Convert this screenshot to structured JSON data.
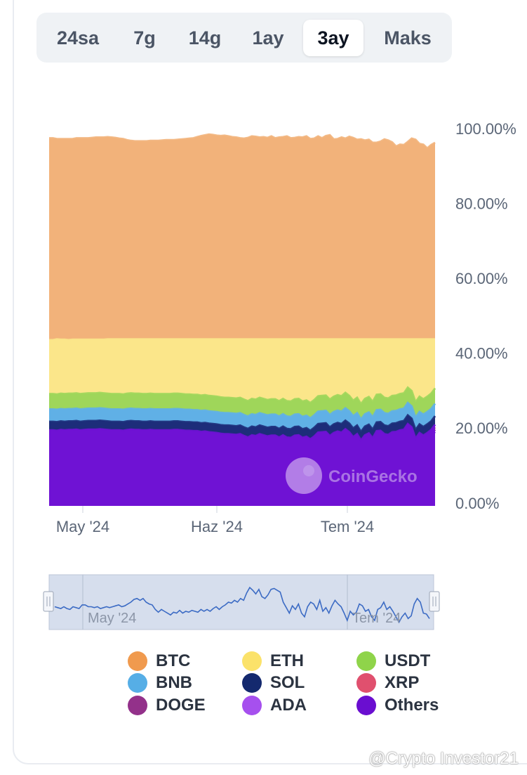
{
  "tabs": [
    {
      "label": "24sa",
      "active": false
    },
    {
      "label": "7g",
      "active": false
    },
    {
      "label": "14g",
      "active": false
    },
    {
      "label": "1ay",
      "active": false
    },
    {
      "label": "3ay",
      "active": true
    },
    {
      "label": "Maks",
      "active": false
    }
  ],
  "chart_data": {
    "type": "area",
    "stacked": true,
    "percent": true,
    "x_ticks": [
      "May '24",
      "Haz '24",
      "Tem '24"
    ],
    "y_ticks": [
      "100.00%",
      "80.00%",
      "60.00%",
      "40.00%",
      "20.00%",
      "0.00%"
    ],
    "ylim": [
      0,
      100
    ],
    "x": [
      0,
      1,
      2,
      3,
      4,
      5,
      6,
      7,
      8,
      9,
      10,
      11,
      12,
      13,
      14,
      15,
      16,
      17,
      18,
      19,
      20,
      21,
      22,
      23,
      24,
      25,
      26,
      27,
      28,
      29,
      30,
      31,
      32,
      33,
      34,
      35,
      36,
      37,
      38,
      39,
      40,
      41,
      42,
      43,
      44,
      45,
      46,
      47,
      48,
      49,
      50,
      51,
      52,
      53,
      54,
      55,
      56,
      57,
      58,
      59,
      60,
      61,
      62,
      63,
      64,
      65,
      66,
      67,
      68,
      69,
      70,
      71,
      72,
      73,
      74,
      75,
      76,
      77,
      78,
      79,
      80,
      81,
      82,
      83,
      84,
      85,
      86,
      87,
      88,
      89,
      90,
      91,
      92,
      93,
      94,
      95,
      96,
      97,
      98,
      99
    ],
    "series": [
      {
        "name": "Others",
        "color": "#6f12d4",
        "values": [
          20.2,
          20.2,
          20.1,
          20.3,
          20.2,
          20.3,
          20.3,
          20.4,
          20.2,
          20.3,
          20.4,
          20.4,
          20.4,
          20.5,
          20.4,
          20.3,
          20.2,
          20.2,
          20.2,
          20.1,
          20.3,
          20.4,
          20.3,
          20.3,
          20.2,
          20.2,
          20.3,
          20.2,
          20.2,
          20.2,
          20.2,
          20.2,
          20.3,
          20.3,
          20.2,
          20.1,
          20.1,
          20.0,
          20.0,
          19.8,
          19.9,
          19.7,
          19.6,
          19.5,
          19.3,
          19.2,
          19.2,
          19.1,
          19.0,
          19.2,
          18.7,
          18.3,
          18.9,
          18.7,
          19.2,
          18.9,
          18.6,
          18.8,
          18.8,
          18.3,
          18.9,
          18.3,
          18.2,
          18.8,
          18.9,
          18.2,
          18.5,
          17.8,
          18.6,
          19.6,
          19.7,
          19.8,
          18.7,
          19.5,
          19.9,
          19.6,
          20.5,
          19.7,
          18.4,
          19.2,
          17.5,
          18.9,
          19.4,
          18.1,
          20.0,
          20.1,
          19.2,
          19.0,
          19.7,
          19.8,
          20.2,
          20.4,
          21.9,
          21.0,
          18.0,
          19.5,
          18.8,
          19.5,
          20.3,
          21.7
        ]
      },
      {
        "name": "ADA",
        "color": "#a04cf0",
        "values": [
          -1.9,
          -1.9,
          -1.9,
          -1.9,
          -1.9,
          -1.9,
          -1.9,
          -1.9,
          -1.9,
          -1.9,
          -1.9,
          -1.9,
          -1.9,
          -1.9,
          -1.9,
          -1.9,
          -1.9,
          -1.9,
          -1.9,
          -1.9,
          -1.9,
          -1.9,
          -1.9,
          -1.9,
          -1.9,
          -1.9,
          -1.9,
          -1.9,
          -1.9,
          -1.9,
          -1.9,
          -1.9,
          -1.9,
          -1.9,
          -1.9,
          -1.9,
          -1.9,
          -1.9,
          -1.9,
          -1.9,
          -1.9,
          -1.9,
          -1.9,
          -1.9,
          -1.9,
          -1.9,
          -1.9,
          -1.9,
          -1.9,
          -1.9,
          -1.9,
          -1.9,
          -1.9,
          -1.9,
          -1.9,
          -1.9,
          -1.9,
          -1.9,
          -1.9,
          -1.9,
          -1.9,
          -1.9,
          -1.9,
          -1.9,
          -1.9,
          -1.9,
          -1.9,
          -1.9,
          -1.9,
          -1.9,
          -1.9,
          -1.9,
          -1.9,
          -1.9,
          -1.9,
          -1.9,
          -1.9,
          -1.9,
          -1.9,
          -1.9,
          -1.9,
          -1.9,
          -1.9,
          -1.9,
          -1.9,
          -1.9,
          -1.9,
          -1.9,
          -1.9,
          -1.9,
          -1.9,
          -1.9,
          -1.9,
          -1.9,
          -1.9,
          -1.9,
          -1.9,
          -1.9,
          -1.9,
          -1.9
        ]
      },
      {
        "name": "DOGE",
        "color": "#963696",
        "values": [
          0.6,
          0.6,
          0.6,
          0.6,
          0.6,
          0.6,
          0.6,
          0.6,
          0.6,
          0.6,
          0.6,
          0.6,
          0.6,
          0.6,
          0.6,
          0.6,
          0.6,
          0.6,
          0.6,
          0.6,
          0.6,
          0.6,
          0.6,
          0.6,
          0.6,
          0.6,
          0.6,
          0.6,
          0.6,
          0.6,
          0.6,
          0.6,
          0.6,
          0.6,
          0.6,
          0.6,
          0.6,
          0.6,
          0.6,
          0.6,
          0.6,
          0.6,
          0.6,
          0.6,
          0.6,
          0.6,
          0.6,
          0.6,
          0.6,
          0.6,
          0.6,
          0.6,
          0.6,
          0.6,
          0.6,
          0.6,
          0.6,
          0.6,
          0.6,
          0.6,
          0.6,
          0.6,
          0.6,
          0.6,
          0.6,
          0.6,
          0.6,
          0.6,
          0.6,
          0.6,
          0.6,
          0.6,
          0.6,
          0.6,
          0.6,
          0.6,
          0.6,
          0.6,
          0.6,
          0.6,
          0.6,
          0.6,
          0.6,
          0.6,
          0.6,
          0.6,
          0.6,
          0.6,
          0.6,
          0.6,
          0.6,
          0.6,
          0.6,
          0.6,
          0.6,
          0.6,
          0.6,
          0.6,
          0.6,
          0.6
        ]
      },
      {
        "name": "XRP",
        "color": "#e2557a",
        "values": [
          0.6,
          0.6,
          0.6,
          0.6,
          0.6,
          0.6,
          0.6,
          0.6,
          0.6,
          0.6,
          0.6,
          0.6,
          0.6,
          0.6,
          0.6,
          0.6,
          0.6,
          0.6,
          0.6,
          0.6,
          0.6,
          0.6,
          0.6,
          0.6,
          0.6,
          0.6,
          0.6,
          0.6,
          0.6,
          0.6,
          0.6,
          0.6,
          0.6,
          0.6,
          0.6,
          0.6,
          0.6,
          0.6,
          0.6,
          0.6,
          0.6,
          0.6,
          0.6,
          0.6,
          0.6,
          0.6,
          0.6,
          0.6,
          0.6,
          0.6,
          0.6,
          0.6,
          0.6,
          0.6,
          0.6,
          0.6,
          0.6,
          0.6,
          0.6,
          0.6,
          0.6,
          0.6,
          0.6,
          0.6,
          0.6,
          0.6,
          0.6,
          0.6,
          0.6,
          0.6,
          0.6,
          0.6,
          0.6,
          0.6,
          0.6,
          0.6,
          0.6,
          0.6,
          0.6,
          0.6,
          0.6,
          0.6,
          0.6,
          0.6,
          0.6,
          0.6,
          0.6,
          0.6,
          0.6,
          0.6,
          0.6,
          0.6,
          0.6,
          0.6,
          0.6,
          0.6,
          0.6,
          0.6,
          0.6,
          0.6
        ]
      },
      {
        "name": "SOL",
        "color": "#1d2d7a",
        "values": [
          3.0,
          3.0,
          3.0,
          3.0,
          3.0,
          3.0,
          3.0,
          3.0,
          3.0,
          3.0,
          3.0,
          3.0,
          3.0,
          3.0,
          3.0,
          3.0,
          3.0,
          3.0,
          3.0,
          3.0,
          3.0,
          3.0,
          3.0,
          3.0,
          3.0,
          3.0,
          3.0,
          3.0,
          3.0,
          3.0,
          3.0,
          3.0,
          3.0,
          3.0,
          3.0,
          3.0,
          3.0,
          3.0,
          3.0,
          3.0,
          3.0,
          3.0,
          3.0,
          3.0,
          3.0,
          3.0,
          3.0,
          3.0,
          3.0,
          3.0,
          3.0,
          3.0,
          3.0,
          3.0,
          3.0,
          3.0,
          3.0,
          3.0,
          3.0,
          3.0,
          3.0,
          3.0,
          3.0,
          3.0,
          3.0,
          3.0,
          3.0,
          3.0,
          3.0,
          3.0,
          3.0,
          3.0,
          3.0,
          3.0,
          3.0,
          3.0,
          3.0,
          3.0,
          3.0,
          3.0,
          3.0,
          3.0,
          3.0,
          3.0,
          3.0,
          3.0,
          3.0,
          3.0,
          3.0,
          3.0,
          3.0,
          3.0,
          3.0,
          3.0,
          3.0,
          3.0,
          3.0,
          3.0,
          3.0,
          3.0
        ]
      },
      {
        "name": "BNB",
        "color": "#60b0e6",
        "values": [
          3.3,
          3.3,
          3.3,
          3.3,
          3.3,
          3.3,
          3.3,
          3.3,
          3.3,
          3.3,
          3.3,
          3.3,
          3.3,
          3.3,
          3.3,
          3.3,
          3.3,
          3.3,
          3.3,
          3.3,
          3.3,
          3.3,
          3.3,
          3.3,
          3.3,
          3.3,
          3.3,
          3.3,
          3.3,
          3.3,
          3.3,
          3.3,
          3.3,
          3.3,
          3.3,
          3.3,
          3.3,
          3.3,
          3.3,
          3.3,
          3.3,
          3.3,
          3.3,
          3.3,
          3.3,
          3.3,
          3.3,
          3.3,
          3.3,
          3.3,
          3.3,
          3.3,
          3.3,
          3.3,
          3.3,
          3.3,
          3.3,
          3.3,
          3.3,
          3.3,
          3.3,
          3.3,
          3.3,
          3.3,
          3.3,
          3.3,
          3.3,
          3.3,
          3.3,
          3.3,
          3.3,
          3.3,
          3.3,
          3.3,
          3.3,
          3.3,
          3.3,
          3.3,
          3.3,
          3.3,
          3.3,
          3.3,
          3.3,
          3.3,
          3.3,
          3.3,
          3.3,
          3.3,
          3.3,
          3.3,
          3.3,
          3.3,
          3.3,
          3.3,
          3.3,
          3.3,
          3.3,
          3.3,
          3.3,
          3.3
        ]
      },
      {
        "name": "USDT",
        "color": "#9fd65a",
        "values": [
          4.1,
          4.1,
          4.1,
          4.1,
          4.1,
          4.1,
          4.1,
          4.1,
          4.1,
          4.1,
          4.1,
          4.1,
          4.1,
          4.1,
          4.1,
          4.1,
          4.1,
          4.1,
          4.1,
          4.1,
          4.1,
          4.1,
          4.1,
          4.1,
          4.1,
          4.1,
          4.1,
          4.1,
          4.1,
          4.1,
          4.1,
          4.1,
          4.1,
          4.1,
          4.1,
          4.1,
          4.1,
          4.1,
          4.1,
          4.1,
          4.1,
          4.1,
          4.1,
          4.1,
          4.1,
          4.1,
          4.1,
          4.1,
          4.1,
          4.1,
          4.1,
          4.1,
          4.1,
          4.1,
          4.1,
          4.1,
          4.1,
          4.1,
          4.1,
          4.1,
          4.1,
          4.1,
          4.1,
          4.1,
          4.1,
          4.1,
          4.1,
          4.1,
          4.1,
          4.1,
          4.1,
          4.1,
          4.1,
          4.1,
          4.1,
          4.1,
          4.1,
          4.1,
          4.1,
          4.1,
          4.1,
          4.1,
          4.1,
          4.1,
          4.1,
          4.1,
          4.1,
          4.1,
          4.1,
          4.1,
          4.1,
          4.1,
          4.1,
          4.1,
          4.1,
          4.1,
          4.1,
          4.1,
          4.1,
          4.1
        ]
      },
      {
        "name": "ETH",
        "color": "#fbe68a",
        "values": [
          14.4,
          14.4,
          14.7,
          14.4,
          14.5,
          14.3,
          14.4,
          14.3,
          14.5,
          14.4,
          14.3,
          14.3,
          14.3,
          14.2,
          14.3,
          14.5,
          14.6,
          14.6,
          14.6,
          14.7,
          14.5,
          14.4,
          14.5,
          14.5,
          14.6,
          14.6,
          14.5,
          14.6,
          14.6,
          14.6,
          14.6,
          14.6,
          14.5,
          14.5,
          14.6,
          14.7,
          14.7,
          14.8,
          14.8,
          15.0,
          14.9,
          15.1,
          15.2,
          15.3,
          15.5,
          15.6,
          15.6,
          15.7,
          15.8,
          15.6,
          16.1,
          16.5,
          15.9,
          16.1,
          15.6,
          15.9,
          16.2,
          16.0,
          16.0,
          16.5,
          15.9,
          16.5,
          16.6,
          16.0,
          15.9,
          16.6,
          16.3,
          17.0,
          16.2,
          15.2,
          15.1,
          15.0,
          16.1,
          15.3,
          14.9,
          15.2,
          14.3,
          15.1,
          16.4,
          15.6,
          17.3,
          15.9,
          15.4,
          16.7,
          14.8,
          14.7,
          15.6,
          15.8,
          15.1,
          15.0,
          14.6,
          14.4,
          12.9,
          13.8,
          16.8,
          15.3,
          16.0,
          15.3,
          14.5,
          13.1
        ]
      },
      {
        "name": "BTC",
        "color": "#f2b27a",
        "values": [
          53.9,
          53.9,
          53.5,
          53.6,
          53.6,
          53.7,
          53.6,
          53.8,
          53.8,
          53.8,
          53.8,
          53.9,
          54.0,
          54.0,
          54.0,
          54.0,
          53.9,
          53.8,
          53.6,
          53.5,
          53.2,
          53.0,
          52.9,
          52.9,
          52.9,
          52.9,
          53.0,
          53.0,
          53.0,
          53.1,
          53.2,
          53.2,
          53.2,
          53.3,
          53.4,
          53.5,
          53.6,
          53.7,
          54.0,
          54.3,
          54.5,
          54.7,
          54.6,
          54.4,
          54.3,
          54.4,
          54.2,
          54.0,
          53.9,
          53.7,
          53.6,
          53.8,
          54.2,
          54.1,
          53.9,
          54.0,
          53.8,
          54.2,
          53.7,
          53.9,
          54.0,
          54.2,
          53.7,
          53.8,
          54.0,
          53.9,
          54.2,
          53.5,
          53.6,
          54.2,
          53.7,
          54.3,
          54.5,
          53.4,
          53.5,
          53.9,
          53.6,
          54.1,
          53.8,
          53.3,
          53.4,
          53.1,
          53.3,
          52.5,
          52.5,
          52.8,
          53.4,
          53.1,
          52.6,
          51.5,
          52.0,
          51.9,
          52.7,
          53.6,
          53.3,
          52.2,
          52.0,
          51.0,
          51.9,
          52.5
        ]
      }
    ],
    "navigator": {
      "x_ticks": [
        "May '24",
        "Tem '24"
      ],
      "values": [
        55,
        54,
        53,
        55,
        53,
        52,
        55,
        54,
        53,
        57,
        57,
        55,
        55,
        54,
        55,
        53,
        54,
        55,
        54,
        55,
        56,
        57,
        55,
        56,
        58,
        60,
        63,
        64,
        62,
        64,
        60,
        58,
        57,
        52,
        49,
        52,
        50,
        48,
        46,
        49,
        48,
        51,
        48,
        50,
        49,
        51,
        50,
        49,
        52,
        50,
        52,
        50,
        53,
        55,
        52,
        55,
        57,
        60,
        59,
        62,
        60,
        64,
        62,
        70,
        76,
        73,
        69,
        74,
        66,
        64,
        68,
        74,
        75,
        73,
        71,
        60,
        54,
        48,
        56,
        52,
        58,
        48,
        44,
        55,
        60,
        58,
        52,
        62,
        50,
        54,
        48,
        56,
        62,
        58,
        55,
        48,
        40,
        50,
        46,
        49,
        58,
        56,
        50,
        52,
        44,
        40,
        52,
        54,
        60,
        52,
        55,
        50,
        44,
        38,
        44,
        48,
        42,
        45,
        58,
        64,
        60,
        48,
        47,
        42
      ]
    },
    "legend": [
      "BTC",
      "ETH",
      "USDT",
      "BNB",
      "SOL",
      "XRP",
      "DOGE",
      "ADA",
      "Others"
    ],
    "watermark": "CoinGecko"
  },
  "footer": {
    "credit": "@Crypto Investor21"
  }
}
